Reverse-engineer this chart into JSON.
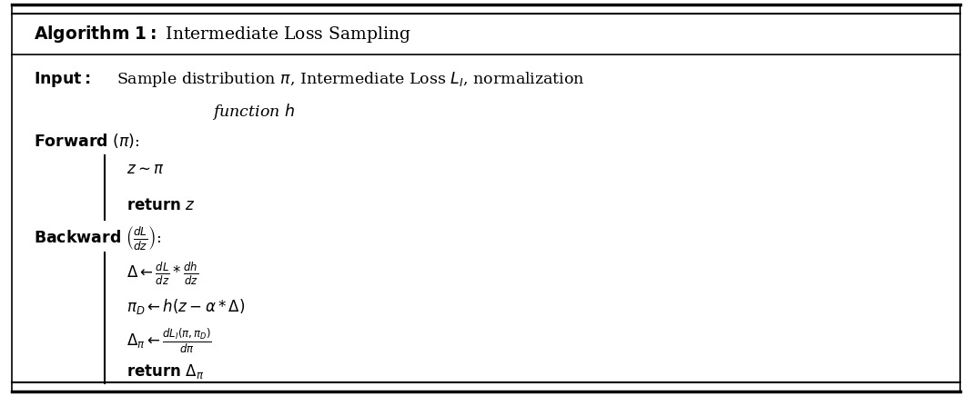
{
  "bg_color": "#ffffff",
  "border_color": "#000000",
  "fig_width": 10.68,
  "fig_height": 4.36,
  "title_bold": "Algorithm 1:",
  "title_normal": " Intermediate Loss Sampling",
  "input_bold": "Input:",
  "input_text": " Sample distribution $\\pi$, Intermediate Loss $L_I$, normalization",
  "input_cont": "function $h$",
  "forward_bold": "Forward",
  "forward_args": " $(\\pi)$:",
  "z_line": "$z \\sim \\pi$",
  "return_z": "return",
  "return_z_math": " $z$",
  "backward_bold": "Backward",
  "backward_args": " $\\left(\\frac{dL}{dz}\\right)$:",
  "delta_line": "$\\Delta \\leftarrow \\frac{dL}{dz} * \\frac{dh}{dz}$",
  "piD_line": "$\\pi_D \\leftarrow h\\left(z - \\alpha * \\Delta\\right)$",
  "deltapi_line": "$\\Delta_\\pi \\leftarrow \\frac{dL_I(\\pi, \\pi_D)}{d\\pi}$",
  "return_bold": "return",
  "return_math": " $\\Delta_\\pi$"
}
